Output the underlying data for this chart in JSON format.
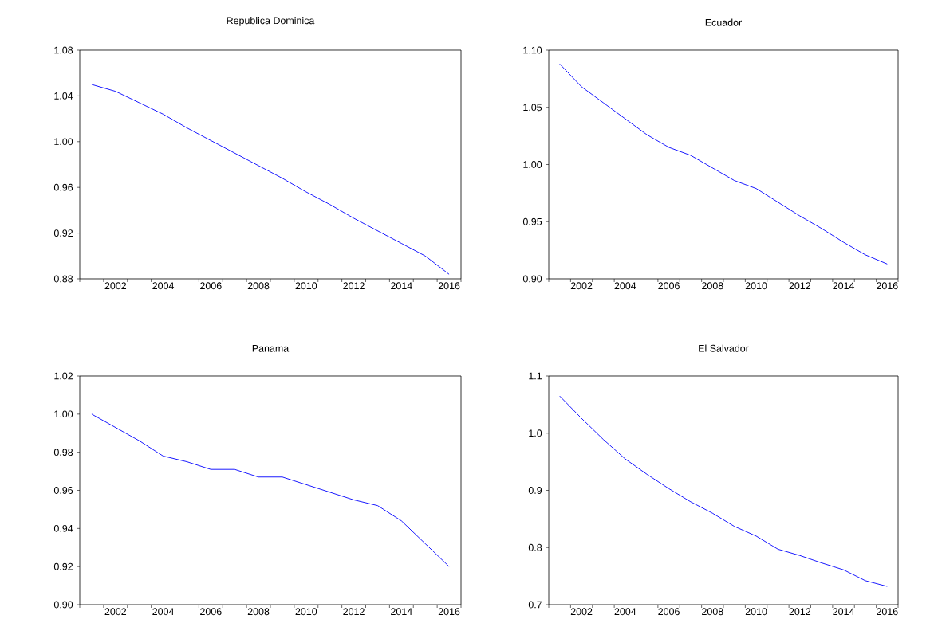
{
  "chart_data": [
    {
      "type": "line",
      "title": "Republica Dominica",
      "x": [
        2001,
        2002,
        2003,
        2004,
        2005,
        2006,
        2007,
        2008,
        2009,
        2010,
        2011,
        2012,
        2013,
        2014,
        2015,
        2016
      ],
      "series": [
        {
          "color": "#0000ff",
          "values": [
            1.05,
            1.044,
            1.034,
            1.024,
            1.012,
            1.001,
            0.99,
            0.979,
            0.968,
            0.956,
            0.945,
            0.933,
            0.922,
            0.911,
            0.9,
            0.884
          ]
        }
      ],
      "xlim": [
        2000.5,
        2016.5
      ],
      "xticks": [
        {
          "value": 2000.5,
          "label": null
        },
        {
          "value": 2001.5,
          "label": null
        },
        2002,
        {
          "value": 2002.5,
          "label": null
        },
        {
          "value": 2003.5,
          "label": null
        },
        2004,
        {
          "value": 2004.5,
          "label": null
        },
        {
          "value": 2005.5,
          "label": null
        },
        2006,
        {
          "value": 2006.5,
          "label": null
        },
        {
          "value": 2007.5,
          "label": null
        },
        2008,
        {
          "value": 2008.5,
          "label": null
        },
        {
          "value": 2009.5,
          "label": null
        },
        2010,
        {
          "value": 2010.5,
          "label": null
        },
        {
          "value": 2011.5,
          "label": null
        },
        2012,
        {
          "value": 2012.5,
          "label": null
        },
        {
          "value": 2013.5,
          "label": null
        },
        2014,
        {
          "value": 2014.5,
          "label": null
        },
        {
          "value": 2015.5,
          "label": null
        },
        2016,
        {
          "value": 2016.5,
          "label": null
        }
      ],
      "ylim": [
        0.88,
        1.08
      ],
      "yticks": [
        {
          "value": 0.88,
          "label": "0.88"
        },
        {
          "value": 0.92,
          "label": "0.92"
        },
        {
          "value": 0.96,
          "label": "0.96"
        },
        {
          "value": 1.0,
          "label": "1.00"
        },
        {
          "value": 1.04,
          "label": "1.04"
        },
        {
          "value": 1.08,
          "label": "1.08"
        }
      ]
    },
    {
      "type": "line",
      "title": "Ecuador",
      "x": [
        2001,
        2002,
        2003,
        2004,
        2005,
        2006,
        2007,
        2008,
        2009,
        2010,
        2011,
        2012,
        2013,
        2014,
        2015,
        2016
      ],
      "series": [
        {
          "color": "#0000ff",
          "values": [
            1.088,
            1.068,
            1.054,
            1.04,
            1.026,
            1.015,
            1.008,
            0.997,
            0.986,
            0.979,
            0.967,
            0.955,
            0.944,
            0.932,
            0.921,
            0.913
          ]
        }
      ],
      "xlim": [
        2000.5,
        2016.5
      ],
      "xticks": [
        {
          "value": 2000.5,
          "label": null
        },
        {
          "value": 2001.5,
          "label": null
        },
        2002,
        {
          "value": 2002.5,
          "label": null
        },
        {
          "value": 2003.5,
          "label": null
        },
        2004,
        {
          "value": 2004.5,
          "label": null
        },
        {
          "value": 2005.5,
          "label": null
        },
        2006,
        {
          "value": 2006.5,
          "label": null
        },
        {
          "value": 2007.5,
          "label": null
        },
        2008,
        {
          "value": 2008.5,
          "label": null
        },
        {
          "value": 2009.5,
          "label": null
        },
        2010,
        {
          "value": 2010.5,
          "label": null
        },
        {
          "value": 2011.5,
          "label": null
        },
        2012,
        {
          "value": 2012.5,
          "label": null
        },
        {
          "value": 2013.5,
          "label": null
        },
        2014,
        {
          "value": 2014.5,
          "label": null
        },
        {
          "value": 2015.5,
          "label": null
        },
        2016,
        {
          "value": 2016.5,
          "label": null
        }
      ],
      "ylim": [
        0.9,
        1.1
      ],
      "yticks": [
        {
          "value": 0.9,
          "label": "0.90"
        },
        {
          "value": 0.95,
          "label": "0.95"
        },
        {
          "value": 1.0,
          "label": "1.00"
        },
        {
          "value": 1.05,
          "label": "1.05"
        },
        {
          "value": 1.1,
          "label": "1.10"
        }
      ]
    },
    {
      "type": "line",
      "title": "Panama",
      "x": [
        2001,
        2002,
        2003,
        2004,
        2005,
        2006,
        2007,
        2008,
        2009,
        2010,
        2011,
        2012,
        2013,
        2014,
        2015,
        2016
      ],
      "series": [
        {
          "color": "#0000ff",
          "values": [
            1.0,
            0.993,
            0.986,
            0.978,
            0.975,
            0.971,
            0.971,
            0.967,
            0.967,
            0.963,
            0.959,
            0.955,
            0.952,
            0.944,
            0.932,
            0.92
          ]
        }
      ],
      "xlim": [
        2000.5,
        2016.5
      ],
      "xticks": [
        {
          "value": 2000.5,
          "label": null
        },
        {
          "value": 2001.5,
          "label": null
        },
        2002,
        {
          "value": 2002.5,
          "label": null
        },
        {
          "value": 2003.5,
          "label": null
        },
        2004,
        {
          "value": 2004.5,
          "label": null
        },
        {
          "value": 2005.5,
          "label": null
        },
        2006,
        {
          "value": 2006.5,
          "label": null
        },
        {
          "value": 2007.5,
          "label": null
        },
        2008,
        {
          "value": 2008.5,
          "label": null
        },
        {
          "value": 2009.5,
          "label": null
        },
        2010,
        {
          "value": 2010.5,
          "label": null
        },
        {
          "value": 2011.5,
          "label": null
        },
        2012,
        {
          "value": 2012.5,
          "label": null
        },
        {
          "value": 2013.5,
          "label": null
        },
        2014,
        {
          "value": 2014.5,
          "label": null
        },
        {
          "value": 2015.5,
          "label": null
        },
        2016,
        {
          "value": 2016.5,
          "label": null
        }
      ],
      "ylim": [
        0.9,
        1.02
      ],
      "yticks": [
        {
          "value": 0.9,
          "label": "0.90"
        },
        {
          "value": 0.92,
          "label": "0.92"
        },
        {
          "value": 0.94,
          "label": "0.94"
        },
        {
          "value": 0.96,
          "label": "0.96"
        },
        {
          "value": 0.98,
          "label": "0.98"
        },
        {
          "value": 1.0,
          "label": "1.00"
        },
        {
          "value": 1.02,
          "label": "1.02"
        }
      ]
    },
    {
      "type": "line",
      "title": "El Salvador",
      "x": [
        2001,
        2002,
        2003,
        2004,
        2005,
        2006,
        2007,
        2008,
        2009,
        2010,
        2011,
        2012,
        2013,
        2014,
        2015,
        2016
      ],
      "series": [
        {
          "color": "#0000ff",
          "values": [
            1.065,
            1.026,
            0.989,
            0.955,
            0.928,
            0.903,
            0.88,
            0.86,
            0.837,
            0.82,
            0.797,
            0.786,
            0.773,
            0.761,
            0.742,
            0.732
          ]
        }
      ],
      "xlim": [
        2000.5,
        2016.5
      ],
      "xticks": [
        {
          "value": 2000.5,
          "label": null
        },
        {
          "value": 2001.5,
          "label": null
        },
        2002,
        {
          "value": 2002.5,
          "label": null
        },
        {
          "value": 2003.5,
          "label": null
        },
        2004,
        {
          "value": 2004.5,
          "label": null
        },
        {
          "value": 2005.5,
          "label": null
        },
        2006,
        {
          "value": 2006.5,
          "label": null
        },
        {
          "value": 2007.5,
          "label": null
        },
        2008,
        {
          "value": 2008.5,
          "label": null
        },
        {
          "value": 2009.5,
          "label": null
        },
        2010,
        {
          "value": 2010.5,
          "label": null
        },
        {
          "value": 2011.5,
          "label": null
        },
        2012,
        {
          "value": 2012.5,
          "label": null
        },
        {
          "value": 2013.5,
          "label": null
        },
        2014,
        {
          "value": 2014.5,
          "label": null
        },
        {
          "value": 2015.5,
          "label": null
        },
        2016,
        {
          "value": 2016.5,
          "label": null
        }
      ],
      "ylim": [
        0.7,
        1.1
      ],
      "yticks": [
        {
          "value": 0.7,
          "label": "0.7"
        },
        {
          "value": 0.8,
          "label": "0.8"
        },
        {
          "value": 0.9,
          "label": "0.9"
        },
        {
          "value": 1.0,
          "label": "1.0"
        },
        {
          "value": 1.1,
          "label": "1.1"
        }
      ]
    }
  ]
}
